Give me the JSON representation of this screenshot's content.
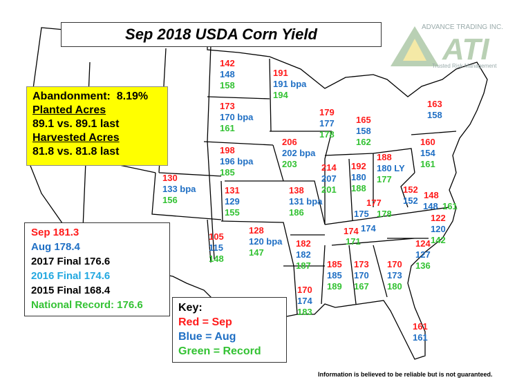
{
  "title": "Sep 2018 USDA Corn Yield",
  "logo": {
    "company": "ADVANCE TRADING INC.",
    "mark": "ATI",
    "tagline": "Trusted Risk Management"
  },
  "summary": {
    "abandonment_label": "Abandonment:",
    "abandonment_value": "8.19%",
    "planted_heading": "Planted Acres",
    "planted": "89.1 vs. 89.1 last",
    "harvested_heading": "Harvested Acres",
    "harvested": "81.8 vs. 81.8 last"
  },
  "national": {
    "sep": "Sep 181.3",
    "aug": "Aug 178.4",
    "f2017": "2017 Final 176.6",
    "f2016": "2016 Final 174.6",
    "f2015": "2015 Final 168.4",
    "record": "National Record: 176.6"
  },
  "key": {
    "heading": "Key:",
    "red": "Red = Sep",
    "blue": "Blue = Aug",
    "green": "Green = Record"
  },
  "footer": "Information is believed to be reliable but is not guaranteed.",
  "colors": {
    "sep": "#ff1a1a",
    "aug": "#1f6fc4",
    "record": "#33c233",
    "highlight": "#ffff00"
  },
  "states": {
    "nd": {
      "sep": "142",
      "aug": "148",
      "rec": "158"
    },
    "mn": {
      "sep": "191",
      "aug": "191 bpa",
      "rec": "194"
    },
    "sd": {
      "sep": "173",
      "aug": "170  bpa",
      "rec": "161"
    },
    "ne": {
      "sep": "198",
      "aug": "196 bpa",
      "rec": "185"
    },
    "wi": {
      "sep": "179",
      "aug": "177",
      "rec": "178"
    },
    "mi": {
      "sep": "165",
      "aug": "158",
      "rec": "162"
    },
    "ia": {
      "sep": "206",
      "aug": "202 bpa",
      "rec": "203"
    },
    "il": {
      "sep": "214",
      "aug": "207",
      "rec": "201"
    },
    "in": {
      "sep": "192",
      "aug": "180",
      "rec": "188"
    },
    "oh": {
      "sep": "188",
      "aug": "180 LY",
      "rec": "177"
    },
    "pa": {
      "sep": "160",
      "aug": "154",
      "rec": "161"
    },
    "ny": {
      "sep": "163",
      "aug": "158"
    },
    "ks": {
      "sep": "131",
      "aug": "129",
      "rec": "155"
    },
    "mo": {
      "sep": "138",
      "aug": "131 bpa",
      "rec": "186"
    },
    "co": {
      "sep": "130",
      "aug": "133 bpa",
      "rec": "156"
    },
    "ky": {
      "sep": "177",
      "aug": "175",
      "rec": "178"
    },
    "wv": {
      "sep": "152",
      "aug": "152"
    },
    "va": {
      "sep": "148",
      "aug": "148",
      "rec": "161"
    },
    "nc": {
      "sep": "122",
      "aug": "120",
      "rec": "142"
    },
    "tn": {
      "sep": "174",
      "aug": "174",
      "rec": "171"
    },
    "ok": {
      "sep": "128",
      "aug": "120 bpa",
      "rec": "147"
    },
    "tx": {
      "sep": "105",
      "aug": "115",
      "rec": "148"
    },
    "ar": {
      "sep": "182",
      "aug": "182",
      "rec": "187"
    },
    "ms": {
      "sep": "185",
      "aug": "185",
      "rec": "189"
    },
    "al": {
      "sep": "173",
      "aug": "170",
      "rec": "167"
    },
    "ga": {
      "sep": "170",
      "aug": "173",
      "rec": "180"
    },
    "sc": {
      "sep": "124",
      "aug": "127",
      "rec": "136"
    },
    "la": {
      "sep": "170",
      "aug": "174",
      "rec": "183"
    },
    "fl": {
      "sep": "161",
      "aug": "161"
    }
  }
}
